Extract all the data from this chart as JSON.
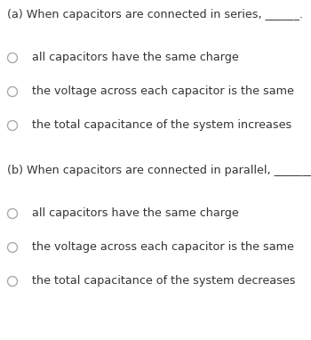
{
  "background_color": "#ffffff",
  "text_color": "#333333",
  "question_a_text": "(a) When capacitors are connected in series, ______.",
  "question_b_text": "(b) When capacitors are connected in parallel, ________.",
  "options_a": [
    "all capacitors have the same charge",
    "the voltage across each capacitor is the same",
    "the total capacitance of the system increases"
  ],
  "options_b": [
    "all capacitors have the same charge",
    "the voltage across each capacitor is the same",
    "the total capacitance of the system decreases"
  ],
  "question_fontsize": 9.2,
  "option_fontsize": 9.2,
  "circle_color": "#aaaaaa",
  "fig_width": 3.5,
  "fig_height": 3.82,
  "dpi": 100
}
